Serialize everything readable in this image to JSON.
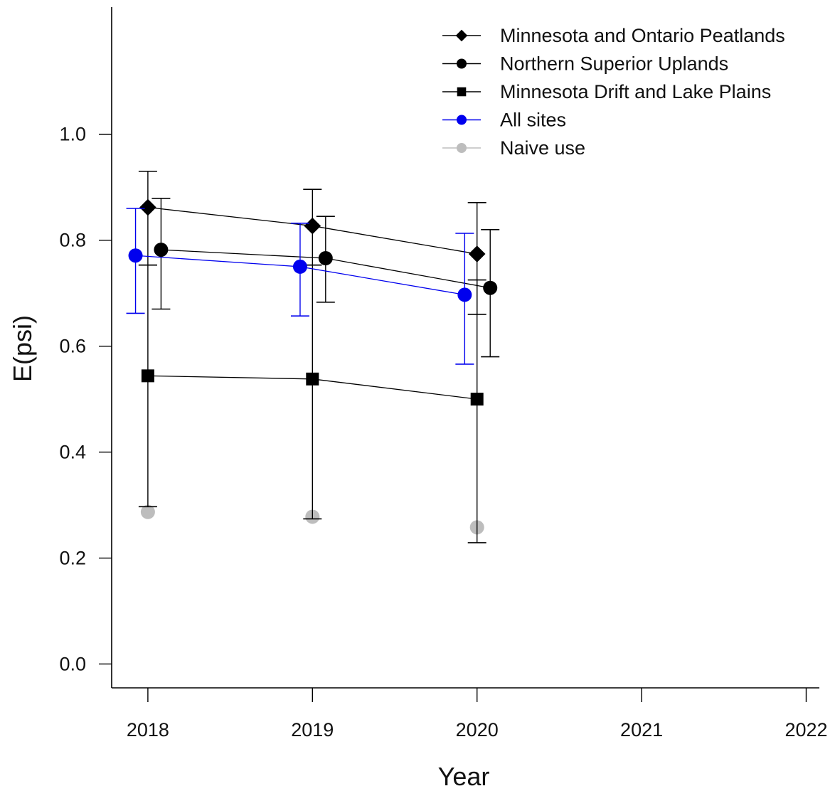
{
  "chart_data": {
    "type": "scatter",
    "title": "",
    "xlabel": "Year",
    "ylabel": "E(psi)",
    "xlim": [
      2017.78,
      2022.08
    ],
    "ylim": [
      -0.045,
      1.24
    ],
    "x_ticks": [
      2018,
      2019,
      2020,
      2021,
      2022
    ],
    "x_tick_labels": [
      "2018",
      "2019",
      "2020",
      "2021",
      "2022"
    ],
    "y_ticks": [
      0.0,
      0.2,
      0.4,
      0.6,
      0.8,
      1.0
    ],
    "y_tick_labels": [
      "0.0",
      "0.2",
      "0.4",
      "0.6",
      "0.8",
      "1.0"
    ],
    "grid": false,
    "legend_position": "top-right",
    "series": [
      {
        "name": "Minnesota and Ontario Peatlands",
        "marker": "diamond",
        "color": "#000000",
        "offset": 0,
        "x": [
          2018,
          2019,
          2020
        ],
        "y": [
          0.862,
          0.827,
          0.774
        ],
        "lower": [
          0.753,
          0.753,
          0.66
        ],
        "upper": [
          0.93,
          0.896,
          0.871
        ]
      },
      {
        "name": "Northern Superior Uplands",
        "marker": "circle",
        "color": "#000000",
        "offset": 0.08,
        "x": [
          2018,
          2019,
          2020
        ],
        "y": [
          0.782,
          0.766,
          0.71
        ],
        "lower": [
          0.67,
          0.683,
          0.58
        ],
        "upper": [
          0.879,
          0.845,
          0.82
        ]
      },
      {
        "name": "Minnesota Drift and Lake Plains",
        "marker": "square",
        "color": "#000000",
        "offset": 0,
        "x": [
          2018,
          2019,
          2020
        ],
        "y": [
          0.544,
          0.538,
          0.5
        ],
        "lower": [
          0.297,
          0.274,
          0.229
        ],
        "upper": [
          0.753,
          0.753,
          0.725
        ]
      },
      {
        "name": "All sites",
        "marker": "circle",
        "color": "#0000ee",
        "offset": -0.075,
        "x": [
          2018,
          2019,
          2020
        ],
        "y": [
          0.771,
          0.75,
          0.697
        ],
        "lower": [
          0.662,
          0.657,
          0.566
        ],
        "upper": [
          0.86,
          0.832,
          0.813
        ]
      },
      {
        "name": "Naive use",
        "marker": "circle",
        "color": "#bdbdbd",
        "offset": 0,
        "x": [
          2018,
          2019,
          2020
        ],
        "y": [
          0.287,
          0.278,
          0.258
        ],
        "lower": null,
        "upper": null
      }
    ]
  }
}
